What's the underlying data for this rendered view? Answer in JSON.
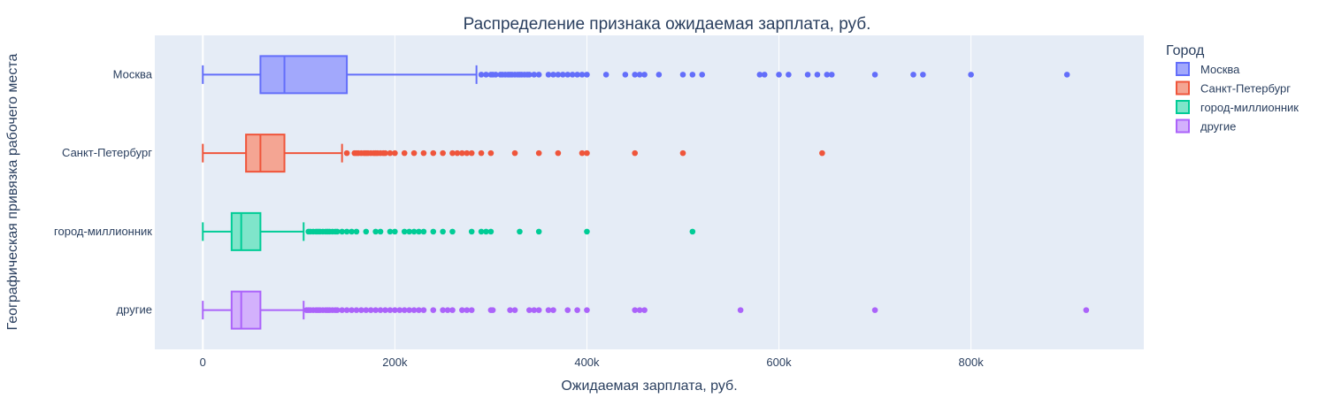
{
  "chart_data": {
    "type": "box",
    "orientation": "horizontal",
    "title": "Распределение признака ожидаемая зарплата, руб.",
    "xlabel": "Ожидаемая зарплата, руб.",
    "ylabel": "Географическая привязка рабочего места",
    "xlim": [
      -50000,
      980000
    ],
    "xticks": [
      0,
      200000,
      400000,
      600000,
      800000
    ],
    "xtick_labels": [
      "0",
      "200k",
      "400k",
      "600k",
      "800k"
    ],
    "grid": true,
    "legend": {
      "title": "Город",
      "position": "top-right"
    },
    "series": [
      {
        "name": "Москва",
        "category": "Москва",
        "color": "#636efa",
        "fill": "#a2a8fc",
        "min": 0,
        "q1": 60000,
        "median": 85000,
        "q3": 150000,
        "upper_fence": 285000,
        "outliers": [
          290000,
          295000,
          300000,
          302000,
          305000,
          310000,
          312000,
          315000,
          318000,
          320000,
          322000,
          325000,
          328000,
          330000,
          332000,
          335000,
          338000,
          340000,
          345000,
          350000,
          360000,
          365000,
          370000,
          375000,
          380000,
          385000,
          390000,
          395000,
          400000,
          420000,
          440000,
          450000,
          455000,
          460000,
          475000,
          500000,
          510000,
          520000,
          580000,
          585000,
          600000,
          610000,
          630000,
          640000,
          650000,
          655000,
          700000,
          740000,
          750000,
          800000,
          900000
        ]
      },
      {
        "name": "Санкт-Петербург",
        "category": "Санкт-Петербург",
        "color": "#ef553b",
        "fill": "#f4a593",
        "min": 0,
        "q1": 45000,
        "median": 60000,
        "q3": 85000,
        "upper_fence": 145000,
        "outliers": [
          150000,
          158000,
          160000,
          162000,
          165000,
          168000,
          170000,
          172000,
          175000,
          178000,
          180000,
          182000,
          185000,
          188000,
          190000,
          195000,
          200000,
          210000,
          220000,
          230000,
          240000,
          250000,
          260000,
          265000,
          270000,
          275000,
          280000,
          290000,
          300000,
          325000,
          350000,
          370000,
          395000,
          400000,
          450000,
          500000,
          645000
        ]
      },
      {
        "name": "город-миллионник",
        "category": "город-миллионник",
        "color": "#00cc96",
        "fill": "#7fe5ca",
        "min": 0,
        "q1": 30000,
        "median": 40000,
        "q3": 60000,
        "upper_fence": 105000,
        "outliers": [
          110000,
          112000,
          115000,
          118000,
          120000,
          122000,
          125000,
          128000,
          130000,
          132000,
          135000,
          138000,
          140000,
          145000,
          150000,
          155000,
          160000,
          170000,
          180000,
          185000,
          195000,
          200000,
          210000,
          215000,
          220000,
          225000,
          230000,
          240000,
          250000,
          260000,
          280000,
          290000,
          295000,
          300000,
          330000,
          350000,
          400000,
          510000
        ]
      },
      {
        "name": "другие",
        "category": "другие",
        "color": "#ab63fa",
        "fill": "#d3b1fc",
        "min": 0,
        "q1": 30000,
        "median": 40000,
        "q3": 60000,
        "upper_fence": 105000,
        "outliers": [
          108000,
          110000,
          112000,
          115000,
          118000,
          120000,
          122000,
          125000,
          128000,
          130000,
          132000,
          135000,
          138000,
          140000,
          145000,
          150000,
          155000,
          160000,
          165000,
          170000,
          175000,
          180000,
          185000,
          190000,
          195000,
          200000,
          205000,
          210000,
          215000,
          220000,
          225000,
          230000,
          240000,
          250000,
          255000,
          260000,
          270000,
          275000,
          280000,
          300000,
          302000,
          320000,
          325000,
          340000,
          345000,
          350000,
          360000,
          365000,
          380000,
          390000,
          400000,
          450000,
          455000,
          460000,
          560000,
          700000,
          920000
        ]
      }
    ]
  }
}
